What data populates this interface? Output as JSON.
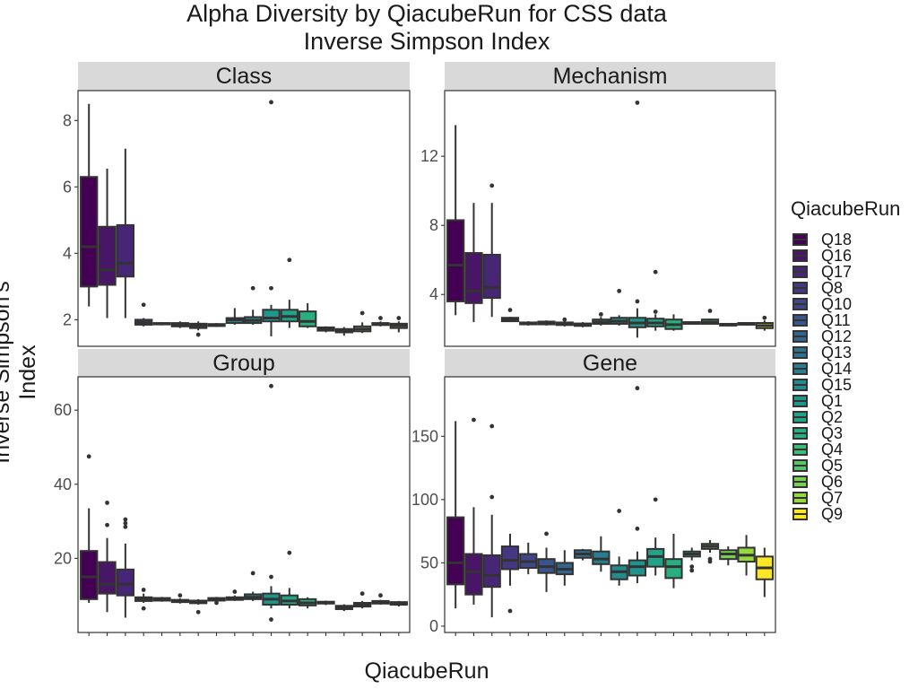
{
  "title_line1": "Alpha Diversity by QiacubeRun for CSS data",
  "title_line2": "Inverse Simpson Index",
  "xlabel": "QiacubeRun",
  "ylabel": "Inverse Simpson's Index",
  "legend_title": "QiacubeRun",
  "legend": [
    {
      "name": "Q18",
      "color": "#440154"
    },
    {
      "name": "Q16",
      "color": "#481567"
    },
    {
      "name": "Q17",
      "color": "#482677"
    },
    {
      "name": "Q8",
      "color": "#453781"
    },
    {
      "name": "Q10",
      "color": "#3F4788"
    },
    {
      "name": "Q11",
      "color": "#39558C"
    },
    {
      "name": "Q12",
      "color": "#32648E"
    },
    {
      "name": "Q13",
      "color": "#2D718E"
    },
    {
      "name": "Q14",
      "color": "#287D8E"
    },
    {
      "name": "Q15",
      "color": "#238A8D"
    },
    {
      "name": "Q1",
      "color": "#1F968B"
    },
    {
      "name": "Q2",
      "color": "#20A386"
    },
    {
      "name": "Q3",
      "color": "#29AF7F"
    },
    {
      "name": "Q4",
      "color": "#3CBC75"
    },
    {
      "name": "Q5",
      "color": "#56C667"
    },
    {
      "name": "Q6",
      "color": "#75D054"
    },
    {
      "name": "Q7",
      "color": "#95D840"
    },
    {
      "name": "Q9",
      "color": "#FDE725"
    }
  ],
  "chart_data": {
    "type": "boxplot",
    "categories": [
      "Q18",
      "Q16",
      "Q17",
      "Q8",
      "Q10",
      "Q11",
      "Q12",
      "Q13",
      "Q14",
      "Q15",
      "Q1",
      "Q2",
      "Q3",
      "Q4",
      "Q5",
      "Q6",
      "Q7",
      "Q9"
    ],
    "xlabel": "QiacubeRun",
    "ylabel": "Inverse Simpson's Index",
    "grid": false,
    "legend_position": "right",
    "panels": [
      {
        "name": "Class",
        "ylim": [
          1.2,
          8.9
        ],
        "yticks": [
          2,
          4,
          6,
          8
        ],
        "boxes": [
          {
            "min": 2.4,
            "q1": 3.0,
            "median": 4.2,
            "q3": 6.3,
            "max": 8.5,
            "outliers": []
          },
          {
            "min": 2.05,
            "q1": 3.05,
            "median": 3.5,
            "q3": 4.8,
            "max": 6.55,
            "outliers": []
          },
          {
            "min": 2.05,
            "q1": 3.3,
            "median": 3.7,
            "q3": 4.85,
            "max": 7.15,
            "outliers": []
          },
          {
            "min": 1.8,
            "q1": 1.85,
            "median": 1.92,
            "q3": 2.0,
            "max": 2.05,
            "outliers": [
              2.45
            ]
          },
          {
            "min": 1.83,
            "q1": 1.86,
            "median": 1.88,
            "q3": 1.9,
            "max": 1.93,
            "outliers": []
          },
          {
            "min": 1.75,
            "q1": 1.8,
            "median": 1.85,
            "q3": 1.9,
            "max": 1.95,
            "outliers": []
          },
          {
            "min": 1.68,
            "q1": 1.75,
            "median": 1.82,
            "q3": 1.88,
            "max": 1.95,
            "outliers": [
              1.55
            ]
          },
          {
            "min": 1.78,
            "q1": 1.81,
            "median": 1.84,
            "q3": 1.87,
            "max": 1.9,
            "outliers": []
          },
          {
            "min": 1.85,
            "q1": 1.9,
            "median": 2.0,
            "q3": 2.05,
            "max": 2.35,
            "outliers": []
          },
          {
            "min": 1.85,
            "q1": 1.9,
            "median": 1.98,
            "q3": 2.08,
            "max": 2.3,
            "outliers": [
              2.95
            ]
          },
          {
            "min": 1.5,
            "q1": 1.95,
            "median": 2.05,
            "q3": 2.3,
            "max": 2.45,
            "outliers": [
              2.95,
              8.55
            ]
          },
          {
            "min": 1.75,
            "q1": 1.95,
            "median": 2.1,
            "q3": 2.3,
            "max": 2.6,
            "outliers": [
              3.8
            ]
          },
          {
            "min": 1.75,
            "q1": 1.8,
            "median": 1.95,
            "q3": 2.25,
            "max": 2.5,
            "outliers": []
          },
          {
            "min": 1.62,
            "q1": 1.67,
            "median": 1.72,
            "q3": 1.77,
            "max": 1.8,
            "outliers": []
          },
          {
            "min": 1.52,
            "q1": 1.62,
            "median": 1.67,
            "q3": 1.72,
            "max": 1.78,
            "outliers": []
          },
          {
            "min": 1.6,
            "q1": 1.65,
            "median": 1.72,
            "q3": 1.8,
            "max": 1.92,
            "outliers": [
              2.2
            ]
          },
          {
            "min": 1.8,
            "q1": 1.84,
            "median": 1.87,
            "q3": 1.9,
            "max": 1.95,
            "outliers": [
              2.05
            ]
          },
          {
            "min": 1.62,
            "q1": 1.75,
            "median": 1.82,
            "q3": 1.88,
            "max": 1.95,
            "outliers": [
              2.05
            ]
          }
        ]
      },
      {
        "name": "Mechanism",
        "ylim": [
          1.0,
          15.8
        ],
        "yticks": [
          4,
          8,
          12
        ],
        "boxes": [
          {
            "min": 2.8,
            "q1": 3.6,
            "median": 5.7,
            "q3": 8.3,
            "max": 13.8,
            "outliers": []
          },
          {
            "min": 2.4,
            "q1": 3.5,
            "median": 4.2,
            "q3": 6.4,
            "max": 9.3,
            "outliers": []
          },
          {
            "min": 2.7,
            "q1": 3.8,
            "median": 4.4,
            "q3": 6.3,
            "max": 9.3,
            "outliers": [
              10.3
            ]
          },
          {
            "min": 2.4,
            "q1": 2.45,
            "median": 2.55,
            "q3": 2.65,
            "max": 2.7,
            "outliers": [
              3.1
            ]
          },
          {
            "min": 2.2,
            "q1": 2.27,
            "median": 2.32,
            "q3": 2.38,
            "max": 2.45,
            "outliers": []
          },
          {
            "min": 2.2,
            "q1": 2.27,
            "median": 2.33,
            "q3": 2.43,
            "max": 2.5,
            "outliers": []
          },
          {
            "min": 2.15,
            "q1": 2.23,
            "median": 2.3,
            "q3": 2.38,
            "max": 2.45,
            "outliers": [
              2.55
            ]
          },
          {
            "min": 2.1,
            "q1": 2.18,
            "median": 2.25,
            "q3": 2.32,
            "max": 2.4,
            "outliers": []
          },
          {
            "min": 2.2,
            "q1": 2.3,
            "median": 2.4,
            "q3": 2.55,
            "max": 2.7,
            "outliers": [
              2.85
            ]
          },
          {
            "min": 2.2,
            "q1": 2.3,
            "median": 2.45,
            "q3": 2.65,
            "max": 2.8,
            "outliers": [
              4.2
            ]
          },
          {
            "min": 1.5,
            "q1": 2.1,
            "median": 2.35,
            "q3": 2.65,
            "max": 3.2,
            "outliers": [
              3.6,
              15.1
            ]
          },
          {
            "min": 1.9,
            "q1": 2.15,
            "median": 2.35,
            "q3": 2.6,
            "max": 2.85,
            "outliers": [
              3.0,
              5.3
            ]
          },
          {
            "min": 1.9,
            "q1": 2.0,
            "median": 2.25,
            "q3": 2.55,
            "max": 2.85,
            "outliers": []
          },
          {
            "min": 2.25,
            "q1": 2.3,
            "median": 2.35,
            "q3": 2.4,
            "max": 2.45,
            "outliers": []
          },
          {
            "min": 2.25,
            "q1": 2.3,
            "median": 2.4,
            "q3": 2.55,
            "max": 2.6,
            "outliers": [
              3.05
            ]
          },
          {
            "min": 2.15,
            "q1": 2.2,
            "median": 2.25,
            "q3": 2.3,
            "max": 2.35,
            "outliers": []
          },
          {
            "min": 2.2,
            "q1": 2.25,
            "median": 2.3,
            "q3": 2.35,
            "max": 2.4,
            "outliers": []
          },
          {
            "min": 1.9,
            "q1": 2.05,
            "median": 2.2,
            "q3": 2.35,
            "max": 2.5,
            "outliers": [
              2.65
            ]
          }
        ]
      },
      {
        "name": "Group",
        "ylim": [
          0,
          69
        ],
        "yticks": [
          20,
          40,
          60
        ],
        "boxes": [
          {
            "min": 8.0,
            "q1": 9.0,
            "median": 15.0,
            "q3": 22.0,
            "max": 33.5,
            "outliers": [
              47.5
            ]
          },
          {
            "min": 5.5,
            "q1": 10.5,
            "median": 13.0,
            "q3": 19.0,
            "max": 25.5,
            "outliers": [
              29.0,
              35.0
            ]
          },
          {
            "min": 4.0,
            "q1": 10.0,
            "median": 13.0,
            "q3": 17.0,
            "max": 24.0,
            "outliers": [
              28.5,
              29.5,
              30.5
            ]
          },
          {
            "min": 8.0,
            "q1": 8.5,
            "median": 9.0,
            "q3": 9.5,
            "max": 10.5,
            "outliers": [
              6.5,
              11.5
            ]
          },
          {
            "min": 8.3,
            "q1": 8.6,
            "median": 9.0,
            "q3": 9.3,
            "max": 9.6,
            "outliers": []
          },
          {
            "min": 7.8,
            "q1": 8.2,
            "median": 8.5,
            "q3": 8.8,
            "max": 9.2,
            "outliers": [
              10.0
            ]
          },
          {
            "min": 7.5,
            "q1": 7.9,
            "median": 8.3,
            "q3": 8.6,
            "max": 9.0,
            "outliers": [
              5.5
            ]
          },
          {
            "min": 8.2,
            "q1": 8.6,
            "median": 9.0,
            "q3": 9.3,
            "max": 9.6,
            "outliers": [
              8.0
            ]
          },
          {
            "min": 8.5,
            "q1": 8.8,
            "median": 9.1,
            "q3": 9.5,
            "max": 10.0,
            "outliers": [
              11.0
            ]
          },
          {
            "min": 8.5,
            "q1": 9.0,
            "median": 9.5,
            "q3": 10.3,
            "max": 11.0,
            "outliers": [
              16.0
            ]
          },
          {
            "min": 6.5,
            "q1": 7.5,
            "median": 9.0,
            "q3": 10.5,
            "max": 12.5,
            "outliers": [
              3.5,
              15.0,
              66.5
            ]
          },
          {
            "min": 6.5,
            "q1": 7.5,
            "median": 8.5,
            "q3": 10.0,
            "max": 12.0,
            "outliers": [
              21.5
            ]
          },
          {
            "min": 6.5,
            "q1": 7.3,
            "median": 8.0,
            "q3": 9.0,
            "max": 9.5,
            "outliers": []
          },
          {
            "min": 7.4,
            "q1": 7.8,
            "median": 8.0,
            "q3": 8.3,
            "max": 8.6,
            "outliers": []
          },
          {
            "min": 5.8,
            "q1": 6.3,
            "median": 6.8,
            "q3": 7.2,
            "max": 7.6,
            "outliers": []
          },
          {
            "min": 6.5,
            "q1": 7.0,
            "median": 7.5,
            "q3": 8.0,
            "max": 8.5,
            "outliers": [
              10.5
            ]
          },
          {
            "min": 7.5,
            "q1": 7.8,
            "median": 8.2,
            "q3": 8.5,
            "max": 8.8,
            "outliers": [
              10.0
            ]
          },
          {
            "min": 7.0,
            "q1": 7.5,
            "median": 7.8,
            "q3": 8.2,
            "max": 8.5,
            "outliers": []
          }
        ]
      },
      {
        "name": "Gene",
        "ylim": [
          -5,
          197
        ],
        "yticks": [
          0,
          50,
          100,
          150
        ],
        "boxes": [
          {
            "min": 14,
            "q1": 33,
            "median": 50,
            "q3": 86,
            "max": 162,
            "outliers": []
          },
          {
            "min": 17,
            "q1": 25,
            "median": 43,
            "q3": 57,
            "max": 94,
            "outliers": [
              163
            ]
          },
          {
            "min": 7,
            "q1": 31,
            "median": 40,
            "q3": 56,
            "max": 88,
            "outliers": [
              102,
              158
            ]
          },
          {
            "min": 32,
            "q1": 45,
            "median": 52,
            "q3": 63,
            "max": 73,
            "outliers": [
              12
            ]
          },
          {
            "min": 41,
            "q1": 46,
            "median": 51,
            "q3": 57,
            "max": 66,
            "outliers": []
          },
          {
            "min": 27,
            "q1": 42,
            "median": 47,
            "q3": 53,
            "max": 62,
            "outliers": [
              73
            ]
          },
          {
            "min": 32,
            "q1": 41,
            "median": 45,
            "q3": 50,
            "max": 60,
            "outliers": []
          },
          {
            "min": 52,
            "q1": 54,
            "median": 57,
            "q3": 60,
            "max": 61,
            "outliers": []
          },
          {
            "min": 43,
            "q1": 49,
            "median": 53,
            "q3": 59,
            "max": 71,
            "outliers": []
          },
          {
            "min": 32,
            "q1": 37,
            "median": 43,
            "q3": 48,
            "max": 55,
            "outliers": [
              91
            ]
          },
          {
            "min": 34,
            "q1": 40,
            "median": 47,
            "q3": 52,
            "max": 59,
            "outliers": [
              77,
              188
            ]
          },
          {
            "min": 40,
            "q1": 47,
            "median": 55,
            "q3": 61,
            "max": 70,
            "outliers": [
              100
            ]
          },
          {
            "min": 30,
            "q1": 38,
            "median": 47,
            "q3": 53,
            "max": 73,
            "outliers": []
          },
          {
            "min": 52,
            "q1": 55,
            "median": 57,
            "q3": 59,
            "max": 62,
            "outliers": [
              44,
              47
            ]
          },
          {
            "min": 58,
            "q1": 61,
            "median": 63,
            "q3": 65,
            "max": 68,
            "outliers": [
              51,
              53
            ]
          },
          {
            "min": 48,
            "q1": 53,
            "median": 57,
            "q3": 60,
            "max": 63,
            "outliers": []
          },
          {
            "min": 40,
            "q1": 51,
            "median": 56,
            "q3": 62,
            "max": 72,
            "outliers": []
          },
          {
            "min": 23,
            "q1": 37,
            "median": 46,
            "q3": 55,
            "max": 62,
            "outliers": []
          }
        ]
      }
    ]
  }
}
